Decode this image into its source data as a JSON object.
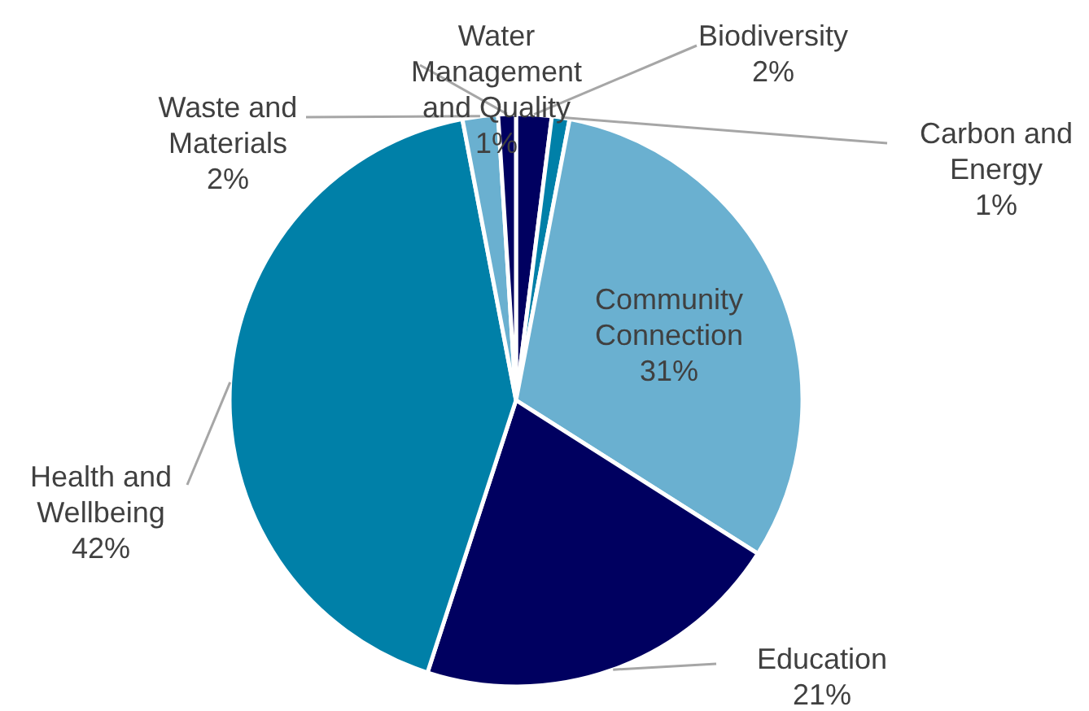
{
  "chart_data": {
    "type": "pie",
    "categories": [
      "Biodiversity",
      "Carbon and Energy",
      "Community Connection",
      "Education",
      "Health and Wellbeing",
      "Waste and Materials",
      "Water Management and Quality"
    ],
    "values": [
      2,
      1,
      31,
      21,
      42,
      2,
      1
    ],
    "colors": [
      "#000060",
      "#0080a8",
      "#6ab0d0",
      "#000060",
      "#0080a8",
      "#6ab0d0",
      "#000060"
    ],
    "value_labels": [
      "2%",
      "1%",
      "31%",
      "21%",
      "42%",
      "2%",
      "1%"
    ],
    "legend": false
  }
}
